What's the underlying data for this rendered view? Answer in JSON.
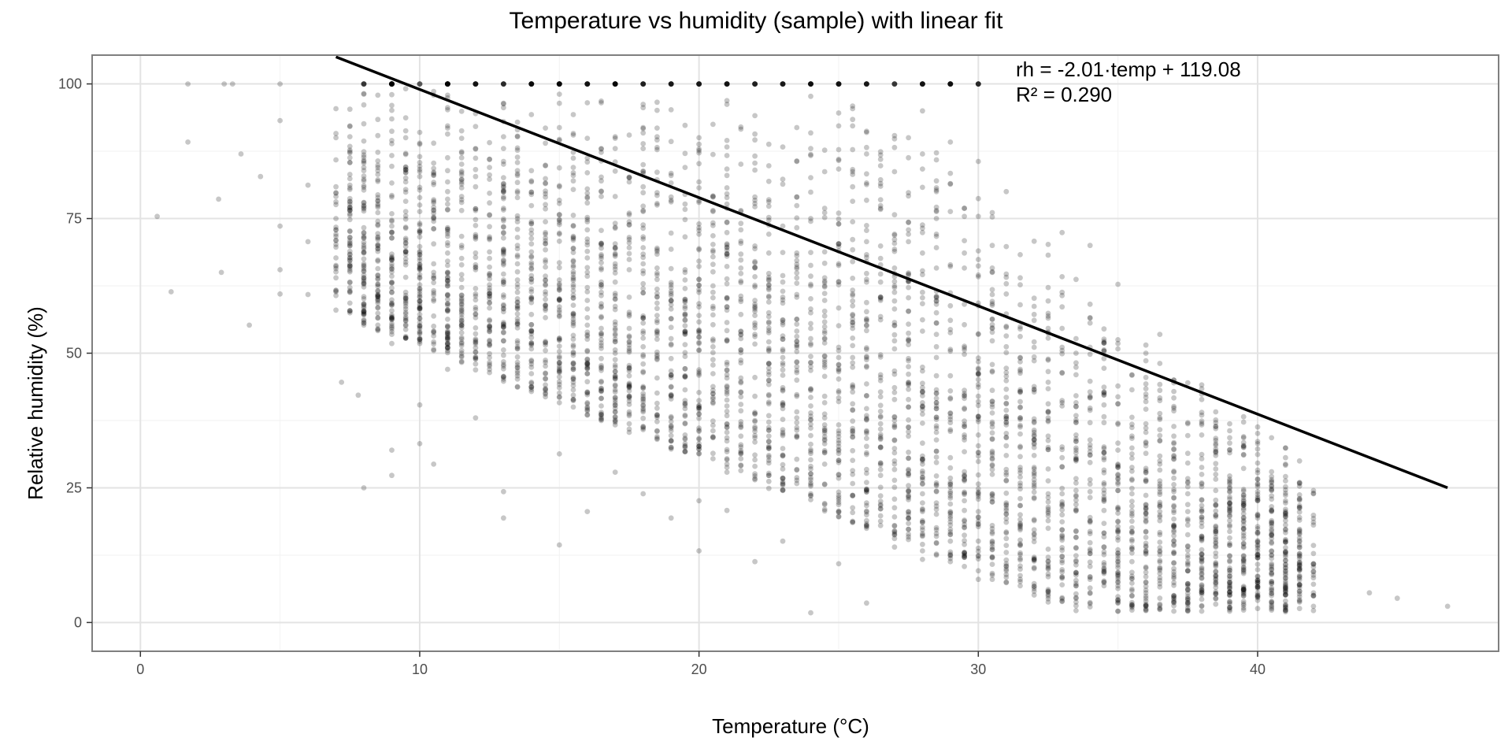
{
  "chart_data": {
    "type": "scatter",
    "title": "Temperature vs humidity (sample) with linear fit",
    "xlabel": "Temperature (°C)",
    "ylabel": "Relative humidity (%)",
    "xlim": [
      -1.7,
      48.6
    ],
    "ylim": [
      -5.2,
      105.2
    ],
    "x_ticks": [
      0,
      10,
      20,
      30,
      40
    ],
    "y_ticks": [
      0,
      25,
      50,
      75,
      100
    ],
    "grid": true,
    "point_color": "#000000",
    "point_opacity": 0.22,
    "fit": {
      "label": "linear fit",
      "slope": -2.01,
      "intercept": 119.08,
      "x_range": [
        7.0,
        46.8
      ],
      "equation_text": "rh = -2.01·temp + 119.08",
      "r2_text": "R² = 0.290"
    },
    "points_sample": [
      [
        0.6,
        75.4
      ],
      [
        1.1,
        61.4
      ],
      [
        1.7,
        89.2
      ],
      [
        1.7,
        100.0
      ],
      [
        2.8,
        78.6
      ],
      [
        2.9,
        65.0
      ],
      [
        3.0,
        100.0
      ],
      [
        3.3,
        100.0
      ],
      [
        3.6,
        87.0
      ],
      [
        3.9,
        55.2
      ],
      [
        4.3,
        82.8
      ],
      [
        5.0,
        100.0
      ],
      [
        5.0,
        73.6
      ],
      [
        5.0,
        65.5
      ],
      [
        5.0,
        61.0
      ],
      [
        5.0,
        93.2
      ],
      [
        6.0,
        81.2
      ],
      [
        6.0,
        70.7
      ],
      [
        6.0,
        60.9
      ],
      [
        7.0,
        58.0
      ],
      [
        7.2,
        44.6
      ],
      [
        7.8,
        42.2
      ],
      [
        8.0,
        25.0
      ],
      [
        8.0,
        87.4
      ],
      [
        9.0,
        63.2
      ],
      [
        9.0,
        51.8
      ],
      [
        9.0,
        32.0
      ],
      [
        9.0,
        27.3
      ],
      [
        10.0,
        40.4
      ],
      [
        10.0,
        33.2
      ],
      [
        10.5,
        29.4
      ],
      [
        11.0,
        58.0
      ],
      [
        11.0,
        47.0
      ],
      [
        12.0,
        38.0
      ],
      [
        13.0,
        24.3
      ],
      [
        13.0,
        19.4
      ],
      [
        15.0,
        14.4
      ],
      [
        15.0,
        31.3
      ],
      [
        16.0,
        20.6
      ],
      [
        17.0,
        27.9
      ],
      [
        18.0,
        23.9
      ],
      [
        19.0,
        19.4
      ],
      [
        20.0,
        13.3
      ],
      [
        20.0,
        22.6
      ],
      [
        21.0,
        20.8
      ],
      [
        22.0,
        11.3
      ],
      [
        23.0,
        15.1
      ],
      [
        24.0,
        1.8
      ],
      [
        25.0,
        10.9
      ],
      [
        26.0,
        3.6
      ],
      [
        27.0,
        14.0
      ],
      [
        28.0,
        11.7
      ],
      [
        29.0,
        12.5
      ],
      [
        30.0,
        8.0
      ],
      [
        31.0,
        11.6
      ],
      [
        32.0,
        6.3
      ],
      [
        33.0,
        9.8
      ],
      [
        34.0,
        6.4
      ],
      [
        35.0,
        3.6
      ],
      [
        35.0,
        7.4
      ],
      [
        36.0,
        10.1
      ],
      [
        37.0,
        4.5
      ],
      [
        38.0,
        12.6
      ],
      [
        39.0,
        8.6
      ],
      [
        40.0,
        4.8
      ],
      [
        40.0,
        6.3
      ],
      [
        41.0,
        5.2
      ],
      [
        42.0,
        8.3
      ],
      [
        44.0,
        5.5
      ],
      [
        45.0,
        4.5
      ],
      [
        46.8,
        3.0
      ],
      [
        41.0,
        24.0
      ],
      [
        42.0,
        24.0
      ],
      [
        40.0,
        26.6
      ],
      [
        39.0,
        27.2
      ],
      [
        38.0,
        34.8
      ],
      [
        37.0,
        45.0
      ],
      [
        36.0,
        50.0
      ],
      [
        35.0,
        62.8
      ],
      [
        34.0,
        70.0
      ],
      [
        33.0,
        72.4
      ],
      [
        31.0,
        80.0
      ],
      [
        30.0,
        85.6
      ],
      [
        29.0,
        89.2
      ],
      [
        28.0,
        95.0
      ],
      [
        27.0,
        100.0
      ],
      [
        25.0,
        100.0
      ],
      [
        22.0,
        100.0
      ],
      [
        20.0,
        100.0
      ],
      [
        18.0,
        100.0
      ],
      [
        15.0,
        100.0
      ],
      [
        12.0,
        100.0
      ],
      [
        10.0,
        100.0
      ],
      [
        9.0,
        100.0
      ],
      [
        8.0,
        100.0
      ]
    ]
  }
}
